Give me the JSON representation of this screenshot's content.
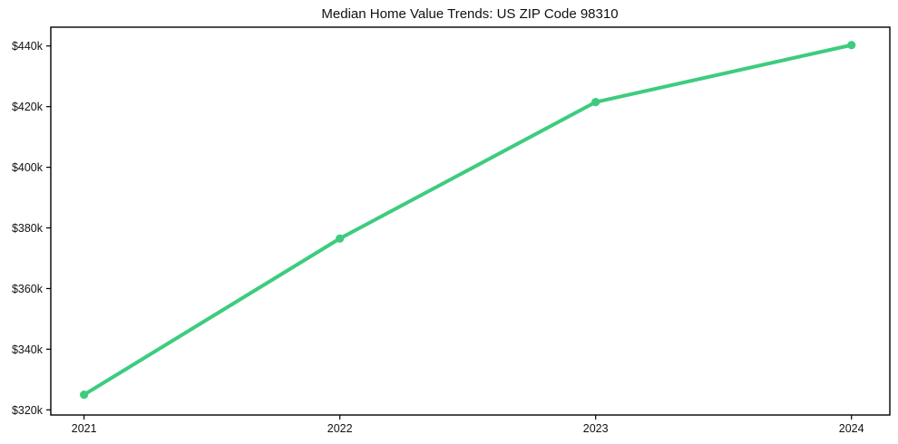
{
  "chart_data": {
    "type": "line",
    "title": "Median Home Value Trends: US ZIP Code 98310",
    "xlabel": "",
    "ylabel": "",
    "x": [
      2021,
      2022,
      2023,
      2024
    ],
    "series": [
      {
        "name": "Median Home Value",
        "values": [
          325000,
          376500,
          421500,
          440300
        ]
      }
    ],
    "x_tick_labels": [
      "2021",
      "2022",
      "2023",
      "2024"
    ],
    "y_ticks": [
      320000,
      340000,
      360000,
      380000,
      400000,
      420000,
      440000
    ],
    "y_tick_labels": [
      "$320k",
      "$340k",
      "$360k",
      "$380k",
      "$400k",
      "$420k",
      "$440k"
    ],
    "xlim": [
      2020.87,
      2024.15
    ],
    "ylim": [
      318300,
      446200
    ],
    "grid": false,
    "legend_position": "none",
    "colors": {
      "line": "#3dcc7e",
      "marker": "#3dcc7e",
      "axis": "#000000",
      "text": "#111111",
      "background": "#ffffff"
    }
  }
}
